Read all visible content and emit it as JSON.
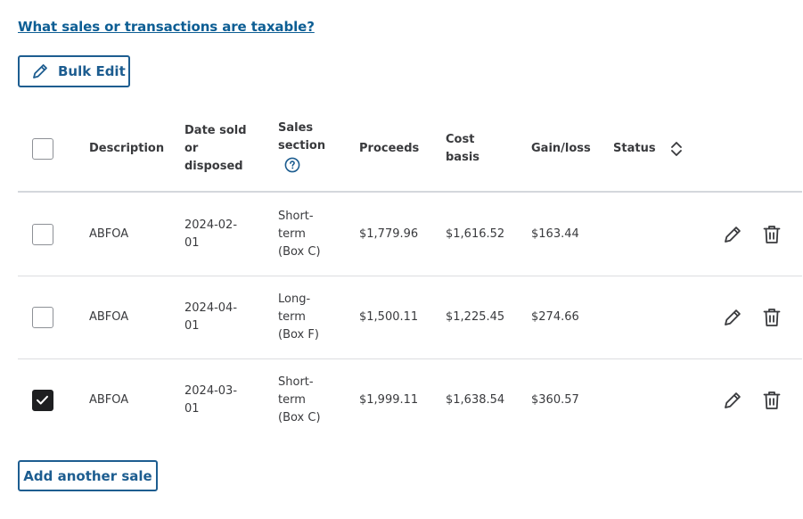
{
  "help_link": "What sales or transactions are taxable?",
  "bulk_edit_label": "Bulk Edit",
  "add_sale_label": "Add another sale",
  "table": {
    "headers": {
      "description": "Description",
      "date_line1": "Date sold",
      "date_line2": "or",
      "date_line3": "disposed",
      "section_line1": "Sales",
      "section_line2": "section",
      "proceeds": "Proceeds",
      "cost_line1": "Cost",
      "cost_line2": "basis",
      "gain_loss": "Gain/loss",
      "status": "Status"
    },
    "header_checkbox_checked": false,
    "rows": [
      {
        "checked": false,
        "description": "ABFOA",
        "date_line1": "2024-02-",
        "date_line2": "01",
        "section_line1": "Short-",
        "section_line2": "term",
        "section_line3": "(Box C)",
        "proceeds": "$1,779.96",
        "cost_basis": "$1,616.52",
        "gain_loss": "$163.44",
        "status": ""
      },
      {
        "checked": false,
        "description": "ABFOA",
        "date_line1": "2024-04-",
        "date_line2": "01",
        "section_line1": "Long-",
        "section_line2": "term",
        "section_line3": "(Box F)",
        "proceeds": "$1,500.11",
        "cost_basis": "$1,225.45",
        "gain_loss": "$274.66",
        "status": ""
      },
      {
        "checked": true,
        "description": "ABFOA",
        "date_line1": "2024-03-",
        "date_line2": "01",
        "section_line1": "Short-",
        "section_line2": "term",
        "section_line3": "(Box C)",
        "proceeds": "$1,999.11",
        "cost_basis": "$1,638.54",
        "gain_loss": "$360.57",
        "status": ""
      }
    ]
  },
  "colors": {
    "link": "#0d5e94",
    "button_border": "#1d5d90",
    "checkbox_checked": "#1e1f21",
    "text": "#393a3d"
  },
  "icons": [
    "pencil-icon",
    "trash-icon",
    "sort-icon",
    "help-circle-icon",
    "checkmark-icon"
  ]
}
